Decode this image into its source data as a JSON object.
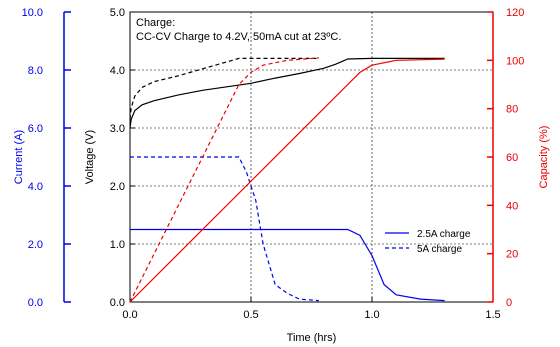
{
  "chart_data": {
    "type": "line",
    "annotation": [
      "Charge:",
      "CC-CV Charge to 4.2V, 50mA cut at 23ºC."
    ],
    "xlabel": "Time (hrs)",
    "xlim": [
      0,
      1.5
    ],
    "xticks": [
      "0.0",
      "0.5",
      "1.0",
      "1.5"
    ],
    "axes": {
      "current": {
        "label": "Current (A)",
        "range": [
          0,
          10
        ],
        "ticks": [
          "0.0",
          "2.0",
          "4.0",
          "6.0",
          "8.0",
          "10.0"
        ],
        "color": "#0000ee"
      },
      "voltage": {
        "label": "Voltage (V)",
        "range": [
          0,
          5
        ],
        "ticks": [
          "0.0",
          "1.0",
          "2.0",
          "3.0",
          "4.0",
          "5.0"
        ],
        "color": "#000000"
      },
      "capacity": {
        "label": "Capacity (%)",
        "range": [
          0,
          120
        ],
        "ticks": [
          "0",
          "20",
          "40",
          "60",
          "80",
          "100",
          "120"
        ],
        "color": "#ee0000"
      }
    },
    "grid": true,
    "legend": {
      "position": "right",
      "entries": [
        {
          "label": "2.5A charge",
          "dash": "solid"
        },
        {
          "label": "5A charge",
          "dash": "dashed"
        }
      ]
    },
    "series": [
      {
        "quantity": "voltage",
        "charge": "2.5A charge",
        "dash": "solid",
        "color": "#000000",
        "points": [
          [
            0,
            3.0
          ],
          [
            0.005,
            3.15
          ],
          [
            0.02,
            3.3
          ],
          [
            0.05,
            3.4
          ],
          [
            0.1,
            3.47
          ],
          [
            0.2,
            3.57
          ],
          [
            0.3,
            3.65
          ],
          [
            0.4,
            3.71
          ],
          [
            0.5,
            3.77
          ],
          [
            0.6,
            3.86
          ],
          [
            0.7,
            3.94
          ],
          [
            0.8,
            4.03
          ],
          [
            0.85,
            4.1
          ],
          [
            0.9,
            4.19
          ],
          [
            1.0,
            4.2
          ],
          [
            1.3,
            4.2
          ]
        ]
      },
      {
        "quantity": "voltage",
        "charge": "5A charge",
        "dash": "dashed",
        "color": "#000000",
        "points": [
          [
            0,
            3.15
          ],
          [
            0.005,
            3.35
          ],
          [
            0.02,
            3.55
          ],
          [
            0.05,
            3.7
          ],
          [
            0.1,
            3.8
          ],
          [
            0.2,
            3.9
          ],
          [
            0.3,
            4.02
          ],
          [
            0.4,
            4.14
          ],
          [
            0.45,
            4.2
          ],
          [
            0.78,
            4.2
          ]
        ]
      },
      {
        "quantity": "current",
        "charge": "2.5A charge",
        "dash": "solid",
        "color": "#0000ee",
        "points": [
          [
            0,
            2.5
          ],
          [
            0.9,
            2.5
          ],
          [
            0.95,
            2.3
          ],
          [
            1.0,
            1.6
          ],
          [
            1.05,
            0.6
          ],
          [
            1.1,
            0.25
          ],
          [
            1.2,
            0.1
          ],
          [
            1.3,
            0.05
          ]
        ]
      },
      {
        "quantity": "current",
        "charge": "5A charge",
        "dash": "dashed",
        "color": "#0000ee",
        "points": [
          [
            0,
            5.0
          ],
          [
            0.45,
            5.0
          ],
          [
            0.48,
            4.5
          ],
          [
            0.52,
            3.5
          ],
          [
            0.55,
            2.0
          ],
          [
            0.6,
            0.6
          ],
          [
            0.65,
            0.3
          ],
          [
            0.7,
            0.1
          ],
          [
            0.78,
            0.05
          ]
        ]
      },
      {
        "quantity": "capacity",
        "charge": "2.5A charge",
        "dash": "solid",
        "color": "#ee0000",
        "points": [
          [
            0,
            0
          ],
          [
            0.9,
            90
          ],
          [
            0.95,
            95
          ],
          [
            1.0,
            98
          ],
          [
            1.1,
            100
          ],
          [
            1.3,
            100.5
          ]
        ]
      },
      {
        "quantity": "capacity",
        "charge": "5A charge",
        "dash": "dashed",
        "color": "#ee0000",
        "points": [
          [
            0,
            0
          ],
          [
            0.45,
            90
          ],
          [
            0.5,
            95
          ],
          [
            0.55,
            98
          ],
          [
            0.65,
            100
          ],
          [
            0.78,
            101
          ]
        ]
      }
    ]
  }
}
